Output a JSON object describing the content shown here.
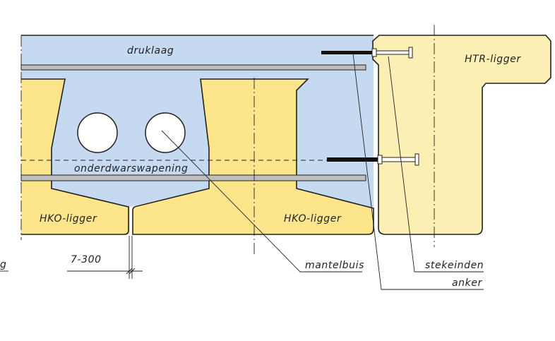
{
  "labels": {
    "druklaag": "druklaag",
    "htr_ligger": "HTR-ligger",
    "onderdwarswapening": "onderdwarswapening",
    "hko_ligger_left": "HKO-ligger",
    "hko_ligger_right": "HKO-ligger",
    "dimension": "7-300",
    "mantelbuis": "mantelbuis",
    "stekeinden": "stekeinden",
    "anker": "anker",
    "cut_off_left": "g"
  },
  "colors": {
    "concrete_topping": "#c5d9f1",
    "hko_beam": "#fde58c",
    "htr_beam": "#fcefb4",
    "rebar": "#bebebe",
    "outline": "#222222",
    "anchor": "#111111",
    "background": "#ffffff"
  }
}
